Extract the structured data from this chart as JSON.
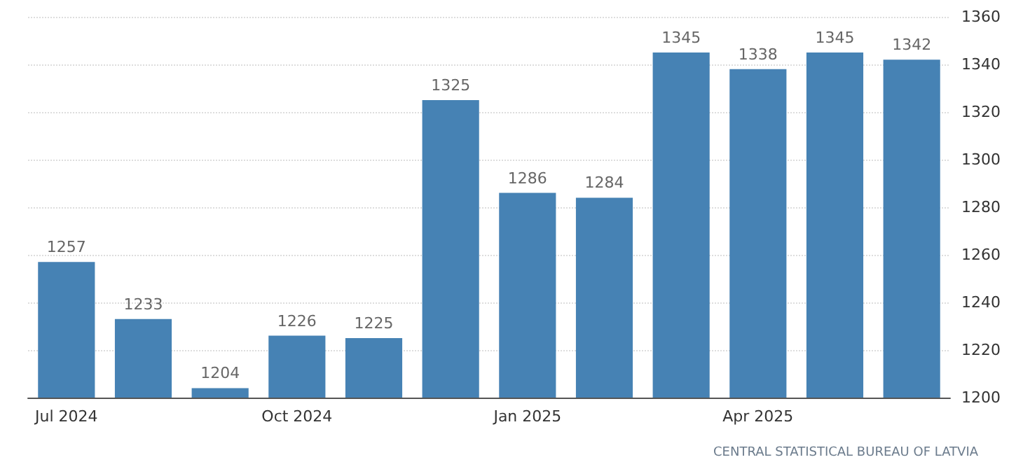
{
  "chart_data": {
    "type": "bar",
    "categories": [
      "Jul 2024",
      null,
      null,
      "Oct 2024",
      null,
      null,
      "Jan 2025",
      null,
      null,
      "Apr 2025",
      null,
      null
    ],
    "values": [
      1257,
      1233,
      1204,
      1226,
      1225,
      1325,
      1286,
      1284,
      1345,
      1338,
      1345,
      1342
    ],
    "color": "#4682b4",
    "ylim": [
      1200,
      1360
    ],
    "yticks": [
      1200,
      1220,
      1240,
      1260,
      1280,
      1300,
      1320,
      1340,
      1360
    ],
    "grid": "y",
    "data_labels": true,
    "annotations": [
      "CENTRAL STATISTICAL BUREAU OF LATVIA"
    ]
  }
}
